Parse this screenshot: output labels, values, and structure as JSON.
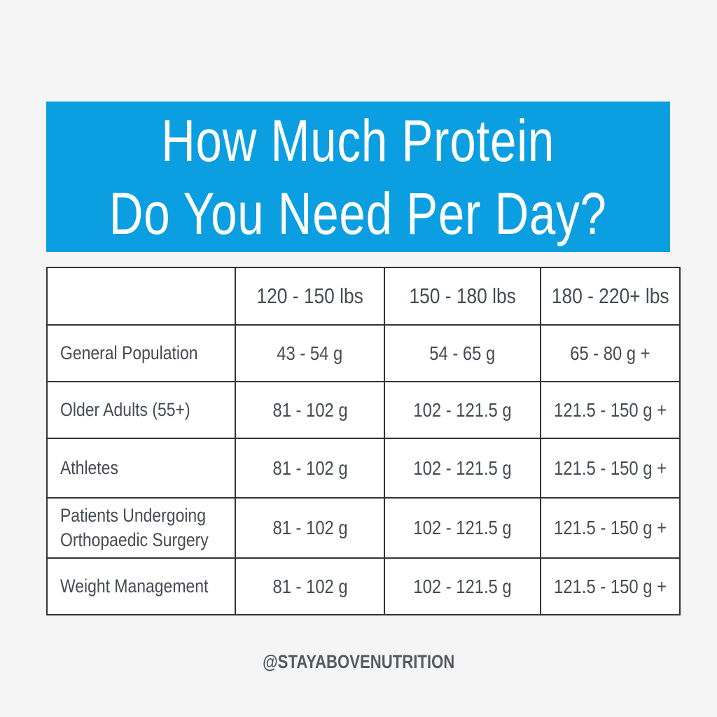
{
  "title": {
    "line1": "How Much Protein",
    "line2": "Do You Need Per Day?"
  },
  "colors": {
    "banner": "#0b9ee0",
    "text": "#464b51",
    "background": "#f5f5f5"
  },
  "table": {
    "headers": [
      "",
      "120 - 150 lbs",
      "150 - 180 lbs",
      "180 - 220+ lbs"
    ],
    "rows": [
      {
        "label_lines": [
          "General Population"
        ],
        "values": [
          "43 - 54 g",
          "54 - 65 g",
          "65 - 80 g +"
        ]
      },
      {
        "label_lines": [
          "Older Adults (55+)"
        ],
        "values": [
          "81 - 102 g",
          "102 - 121.5 g",
          "121.5 - 150 g +"
        ]
      },
      {
        "label_lines": [
          "Athletes"
        ],
        "values": [
          "81 - 102 g",
          "102 - 121.5 g",
          "121.5 - 150 g +"
        ]
      },
      {
        "label_lines": [
          "Patients Undergoing",
          "Orthopaedic Surgery"
        ],
        "values": [
          "81 - 102 g",
          "102 - 121.5 g",
          "121.5 - 150 g +"
        ]
      },
      {
        "label_lines": [
          "Weight Management"
        ],
        "values": [
          "81 - 102 g",
          "102 - 121.5 g",
          "121.5 - 150 g +"
        ]
      }
    ]
  },
  "footer": {
    "handle": "@STAYABOVENUTRITION"
  }
}
